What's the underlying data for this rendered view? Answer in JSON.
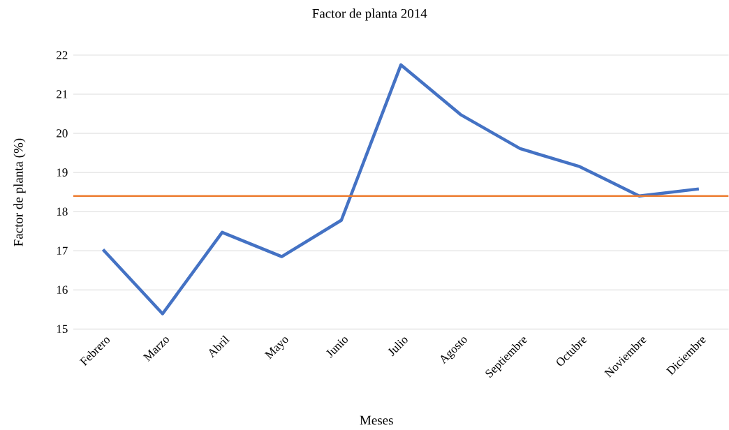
{
  "chart_data": {
    "type": "line",
    "title": "Factor de planta 2014",
    "xlabel": "Meses",
    "ylabel": "Factor de planta (%)",
    "categories": [
      "Febrero",
      "Marzo",
      "Abril",
      "Mayo",
      "Junio",
      "Julio",
      "Agosto",
      "Septiembre",
      "Octubre",
      "Noviembre",
      "Diciembre"
    ],
    "series": [
      {
        "color": "#4472c4",
        "values": [
          17.03,
          15.39,
          17.47,
          16.85,
          17.78,
          21.75,
          20.48,
          19.61,
          19.15,
          18.4,
          18.58
        ]
      }
    ],
    "ref_lines": [
      {
        "axis": "y",
        "value": 18.4,
        "color": "#ed7d31"
      }
    ],
    "ylim": [
      15,
      22
    ],
    "yticks": [
      15,
      16,
      17,
      18,
      19,
      20,
      21,
      22
    ],
    "grid": "y",
    "marker": "none",
    "line_style": "solid"
  }
}
